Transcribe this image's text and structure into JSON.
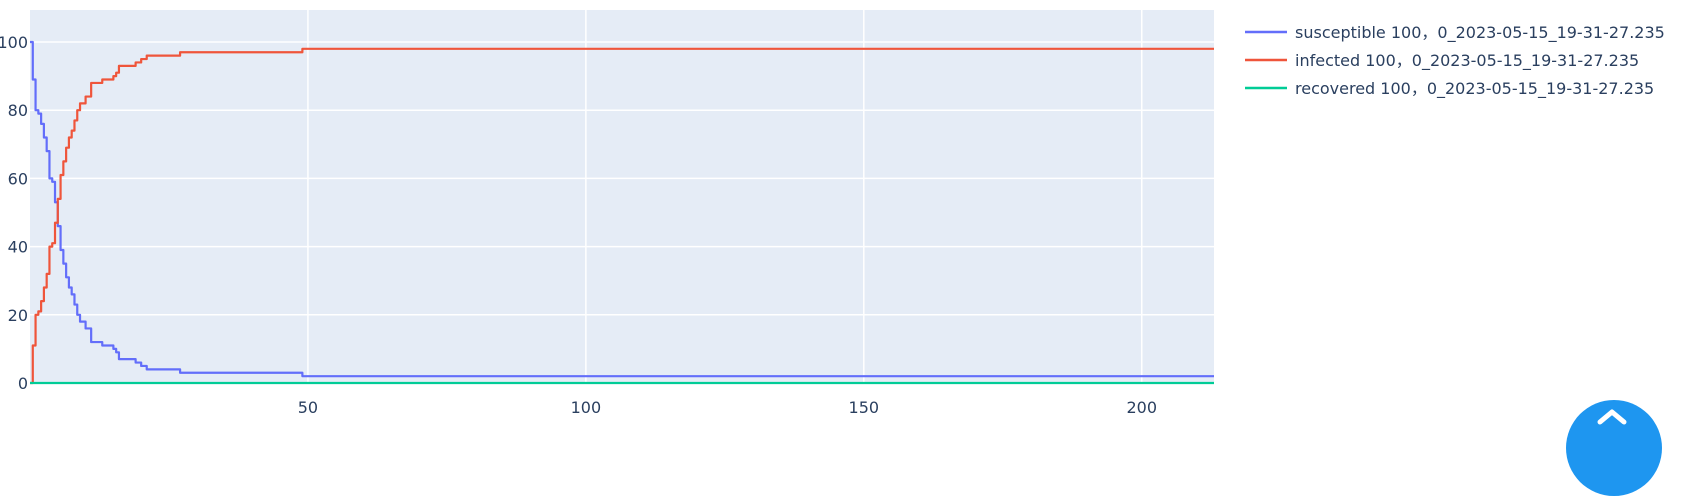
{
  "colors": {
    "plot_bg": "#e5ecf6",
    "grid": "#ffffff",
    "text": "#2a3f5f",
    "fab": "#1e96f0"
  },
  "fab": {
    "icon": "collapse-arrows-icon"
  },
  "chart_data": {
    "type": "line",
    "line_shape": "step",
    "title": "",
    "xlabel": "",
    "ylabel": "",
    "xlim": [
      0,
      213
    ],
    "ylim": [
      0,
      100
    ],
    "x_ticks": [
      50,
      100,
      150,
      200
    ],
    "y_ticks": [
      0,
      20,
      40,
      60,
      80,
      100
    ],
    "grid": true,
    "legend_position": "right",
    "series": [
      {
        "name": "susceptible 100，0_2023-05-15_19-31-27.235",
        "color": "#636efa",
        "x": [
          0,
          0.5,
          1,
          1.5,
          2,
          2.5,
          3,
          3.5,
          4,
          4.5,
          5,
          5.5,
          6,
          6.5,
          7,
          7.5,
          8,
          8.5,
          9,
          10,
          11,
          12,
          13,
          15,
          15.5,
          16,
          17,
          18,
          19,
          20,
          21,
          22,
          27,
          49,
          213
        ],
        "y": [
          100,
          89,
          80,
          79,
          76,
          72,
          68,
          60,
          59,
          53,
          46,
          39,
          35,
          31,
          28,
          26,
          23,
          20,
          18,
          16,
          12,
          12,
          11,
          10,
          9,
          7,
          7,
          7,
          6,
          5,
          4,
          4,
          3,
          2,
          2
        ]
      },
      {
        "name": "infected 100，0_2023-05-15_19-31-27.235",
        "color": "#ef553b",
        "x": [
          0,
          0.5,
          1,
          1.5,
          2,
          2.5,
          3,
          3.5,
          4,
          4.5,
          5,
          5.5,
          6,
          6.5,
          7,
          7.5,
          8,
          8.5,
          9,
          10,
          11,
          12,
          13,
          15,
          15.5,
          16,
          17,
          18,
          19,
          20,
          21,
          22,
          27,
          49,
          213
        ],
        "y": [
          0,
          11,
          20,
          21,
          24,
          28,
          32,
          40,
          41,
          47,
          54,
          61,
          65,
          69,
          72,
          74,
          77,
          80,
          82,
          84,
          88,
          88,
          89,
          90,
          91,
          93,
          93,
          93,
          94,
          95,
          96,
          96,
          97,
          98,
          98
        ]
      },
      {
        "name": "recovered 100，0_2023-05-15_19-31-27.235",
        "color": "#00cc96",
        "x": [
          0,
          213
        ],
        "y": [
          0,
          0
        ]
      }
    ]
  }
}
